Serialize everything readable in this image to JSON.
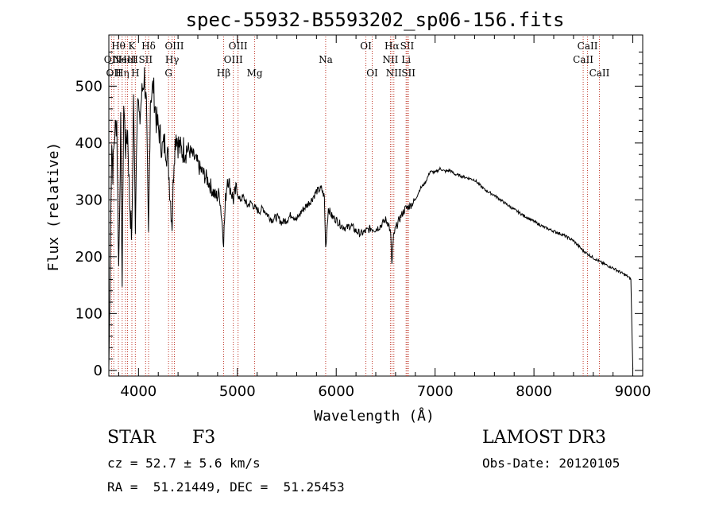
{
  "chart_data": {
    "type": "line",
    "title": "spec-55932-B5593202_sp06-156.fits",
    "xlabel": "Wavelength (Å)",
    "ylabel": "Flux (relative)",
    "xlim": [
      3700,
      9100
    ],
    "ylim": [
      -10,
      590
    ],
    "xticks": [
      4000,
      5000,
      6000,
      7000,
      8000,
      9000
    ],
    "yticks": [
      0,
      100,
      200,
      300,
      400,
      500
    ],
    "grid": false,
    "series": [
      {
        "name": "spectrum",
        "x": [
          3700,
          3710,
          3720,
          3730,
          3740,
          3760,
          3780,
          3800,
          3820,
          3835,
          3850,
          3870,
          3890,
          3910,
          3933,
          3950,
          3968,
          3990,
          4010,
          4030,
          4060,
          4080,
          4101,
          4120,
          4150,
          4180,
          4210,
          4240,
          4270,
          4300,
          4320,
          4340,
          4360,
          4380,
          4400,
          4430,
          4460,
          4500,
          4540,
          4580,
          4620,
          4660,
          4700,
          4740,
          4780,
          4820,
          4861,
          4880,
          4900,
          4930,
          4960,
          4990,
          5020,
          5060,
          5100,
          5140,
          5180,
          5220,
          5260,
          5300,
          5350,
          5400,
          5450,
          5500,
          5550,
          5600,
          5650,
          5700,
          5750,
          5800,
          5850,
          5880,
          5893,
          5920,
          5960,
          6000,
          6050,
          6100,
          6150,
          6200,
          6250,
          6300,
          6350,
          6400,
          6450,
          6500,
          6530,
          6550,
          6563,
          6580,
          6600,
          6650,
          6700,
          6750,
          6800,
          6850,
          6900,
          6950,
          7000,
          7050,
          7100,
          7150,
          7200,
          7300,
          7400,
          7500,
          7600,
          7700,
          7800,
          7900,
          8000,
          8100,
          8200,
          8300,
          8400,
          8500,
          8600,
          8700,
          8800,
          8900,
          8950,
          8980,
          9000
        ],
        "y": [
          5,
          120,
          300,
          400,
          350,
          420,
          440,
          180,
          430,
          150,
          470,
          390,
          420,
          300,
          230,
          480,
          260,
          500,
          430,
          480,
          520,
          460,
          230,
          480,
          500,
          440,
          420,
          390,
          400,
          370,
          310,
          260,
          380,
          420,
          400,
          385,
          390,
          390,
          380,
          370,
          355,
          345,
          335,
          320,
          305,
          310,
          230,
          300,
          340,
          320,
          300,
          320,
          300,
          305,
          290,
          295,
          285,
          280,
          285,
          275,
          265,
          270,
          260,
          265,
          275,
          265,
          280,
          290,
          300,
          315,
          320,
          305,
          215,
          285,
          270,
          265,
          255,
          250,
          255,
          245,
          240,
          245,
          250,
          248,
          255,
          265,
          258,
          240,
          185,
          235,
          250,
          270,
          285,
          290,
          300,
          320,
          330,
          350,
          348,
          355,
          350,
          352,
          345,
          340,
          335,
          318,
          308,
          295,
          283,
          272,
          262,
          252,
          245,
          238,
          228,
          210,
          198,
          188,
          180,
          170,
          165,
          160,
          3
        ]
      }
    ],
    "spectral_lines": [
      {
        "wl": 3727,
        "label": "OII",
        "row": 2
      },
      {
        "wl": 3750,
        "label": "OII",
        "row": 3
      },
      {
        "wl": 3797,
        "label": "Hθ",
        "row": 1
      },
      {
        "wl": 3835,
        "label": "Hη",
        "row": 3
      },
      {
        "wl": 3869,
        "label": "NeIII",
        "row": 2
      },
      {
        "wl": 3889,
        "label": "HeI",
        "row": 2
      },
      {
        "wl": 3933,
        "label": "K",
        "row": 1
      },
      {
        "wl": 3968,
        "label": "H",
        "row": 3
      },
      {
        "wl": 4072,
        "label": "SII",
        "row": 2
      },
      {
        "wl": 4102,
        "label": "Hδ",
        "row": 1
      },
      {
        "wl": 4304,
        "label": "G",
        "row": 3
      },
      {
        "wl": 4340,
        "label": "Hγ",
        "row": 2
      },
      {
        "wl": 4363,
        "label": "OIII",
        "row": 1
      },
      {
        "wl": 4861,
        "label": "Hβ",
        "row": 3
      },
      {
        "wl": 4959,
        "label": "OIII",
        "row": 2
      },
      {
        "wl": 5007,
        "label": "OIII",
        "row": 1
      },
      {
        "wl": 5175,
        "label": "Mg",
        "row": 3
      },
      {
        "wl": 5893,
        "label": "Na",
        "row": 2
      },
      {
        "wl": 6300,
        "label": "OI",
        "row": 1
      },
      {
        "wl": 6364,
        "label": "OI",
        "row": 3
      },
      {
        "wl": 6548,
        "label": "NII",
        "row": 2
      },
      {
        "wl": 6563,
        "label": "Hα",
        "row": 1
      },
      {
        "wl": 6583,
        "label": "NII",
        "row": 3
      },
      {
        "wl": 6707,
        "label": "Li",
        "row": 2
      },
      {
        "wl": 6717,
        "label": "SII",
        "row": 1
      },
      {
        "wl": 6731,
        "label": "SII",
        "row": 3
      },
      {
        "wl": 8498,
        "label": "CaII",
        "row": 2
      },
      {
        "wl": 8542,
        "label": "CaII",
        "row": 1
      },
      {
        "wl": 8662,
        "label": "CaII",
        "row": 3
      }
    ]
  },
  "info": {
    "object_class": "STAR",
    "subclass": "F3",
    "survey": "LAMOST DR3",
    "cz": "cz = 52.7 ± 5.6 km/s",
    "obs_date": "Obs-Date: 20120105",
    "coords": "RA =  51.21449, DEC =  51.25453"
  }
}
